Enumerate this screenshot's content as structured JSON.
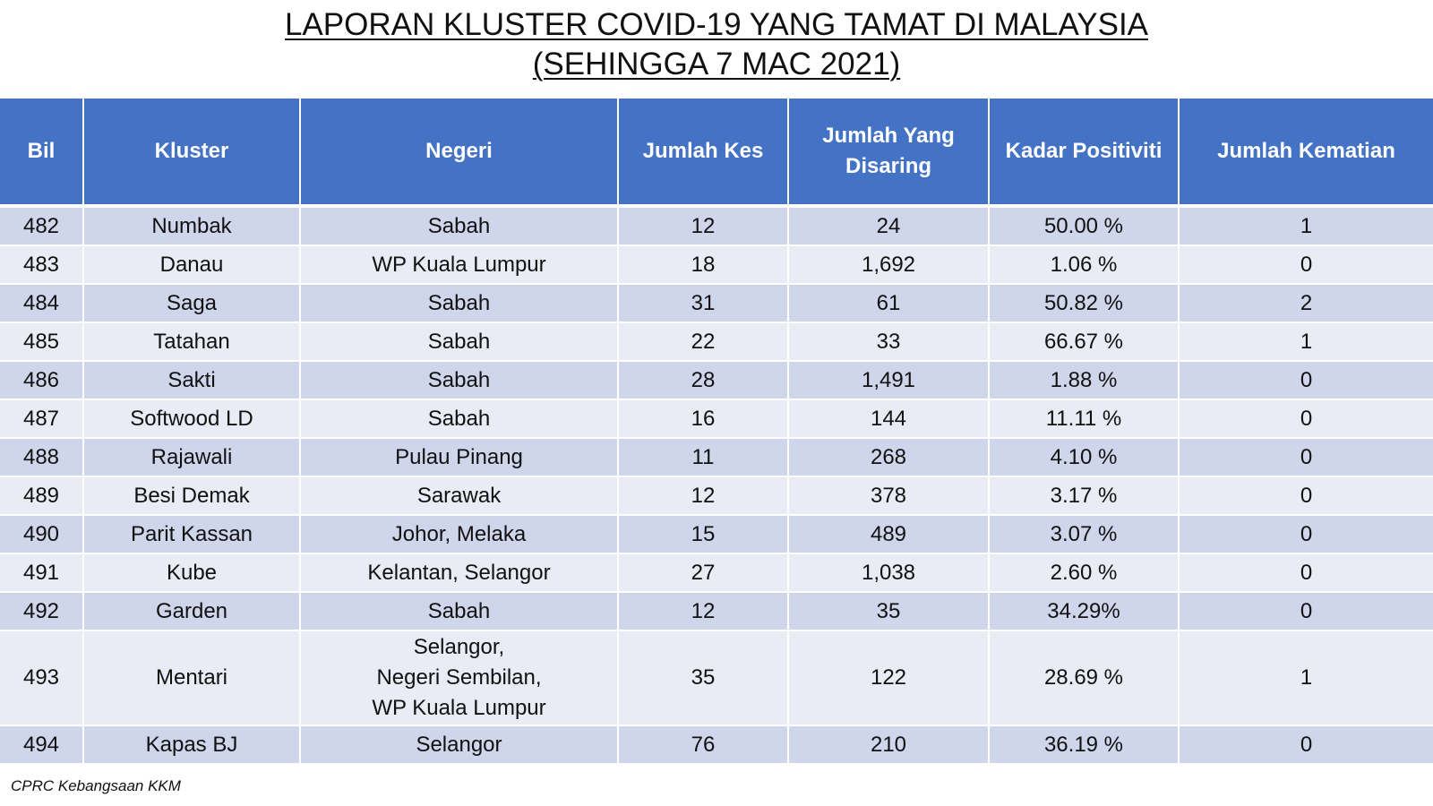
{
  "title": {
    "line1": "LAPORAN KLUSTER COVID-19 YANG TAMAT DI MALAYSIA",
    "line2": "(SEHINGGA 7 MAC 2021)"
  },
  "table": {
    "headers": {
      "bil": "Bil",
      "kluster": "Kluster",
      "negeri": "Negeri",
      "jumlah_kes": "Jumlah Kes",
      "jumlah_disaring": "Jumlah Yang Disaring",
      "kadar_positiviti": "Kadar Positiviti",
      "jumlah_kematian": "Jumlah Kematian"
    },
    "rows": [
      {
        "bil": "482",
        "kluster": "Numbak",
        "negeri": "Sabah",
        "kes": "12",
        "disaring": "24",
        "kadar": "50.00 %",
        "kematian": "1"
      },
      {
        "bil": "483",
        "kluster": "Danau",
        "negeri": "WP Kuala Lumpur",
        "kes": "18",
        "disaring": "1,692",
        "kadar": "1.06 %",
        "kematian": "0"
      },
      {
        "bil": "484",
        "kluster": "Saga",
        "negeri": "Sabah",
        "kes": "31",
        "disaring": "61",
        "kadar": "50.82 %",
        "kematian": "2"
      },
      {
        "bil": "485",
        "kluster": "Tatahan",
        "negeri": "Sabah",
        "kes": "22",
        "disaring": "33",
        "kadar": "66.67 %",
        "kematian": "1"
      },
      {
        "bil": "486",
        "kluster": "Sakti",
        "negeri": "Sabah",
        "kes": "28",
        "disaring": "1,491",
        "kadar": "1.88 %",
        "kematian": "0"
      },
      {
        "bil": "487",
        "kluster": "Softwood LD",
        "negeri": "Sabah",
        "kes": "16",
        "disaring": "144",
        "kadar": "11.11 %",
        "kematian": "0"
      },
      {
        "bil": "488",
        "kluster": "Rajawali",
        "negeri": "Pulau Pinang",
        "kes": "11",
        "disaring": "268",
        "kadar": "4.10 %",
        "kematian": "0"
      },
      {
        "bil": "489",
        "kluster": "Besi Demak",
        "negeri": "Sarawak",
        "kes": "12",
        "disaring": "378",
        "kadar": "3.17 %",
        "kematian": "0"
      },
      {
        "bil": "490",
        "kluster": "Parit Kassan",
        "negeri": "Johor, Melaka",
        "kes": "15",
        "disaring": "489",
        "kadar": "3.07 %",
        "kematian": "0"
      },
      {
        "bil": "491",
        "kluster": "Kube",
        "negeri": "Kelantan, Selangor",
        "kes": "27",
        "disaring": "1,038",
        "kadar": "2.60 %",
        "kematian": "0"
      },
      {
        "bil": "492",
        "kluster": "Garden",
        "negeri": "Sabah",
        "kes": "12",
        "disaring": "35",
        "kadar": "34.29%",
        "kematian": "0"
      },
      {
        "bil": "493",
        "kluster": "Mentari",
        "negeri_lines": [
          "Selangor,",
          "Negeri Sembilan,",
          "WP Kuala Lumpur"
        ],
        "kes": "35",
        "disaring": "122",
        "kadar": "28.69 %",
        "kematian": "1"
      },
      {
        "bil": "494",
        "kluster": "Kapas BJ",
        "negeri": "Selangor",
        "kes": "76",
        "disaring": "210",
        "kadar": "36.19 %",
        "kematian": "0"
      }
    ]
  },
  "footer": {
    "source": "CPRC Kebangsaan KKM"
  },
  "colors": {
    "header_bg": "#4472c4",
    "row_odd_bg": "#cfd5ea",
    "row_even_bg": "#e9ebf5"
  }
}
